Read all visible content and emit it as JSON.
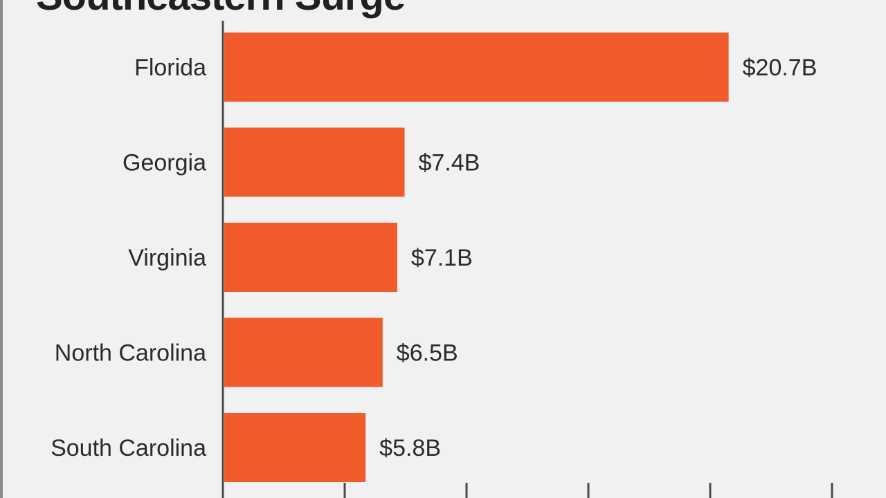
{
  "header": {
    "title": "Southeastern Surge"
  },
  "chart_data": {
    "type": "bar",
    "orientation": "horizontal",
    "title": "Southeastern Surge",
    "categories": [
      "Florida",
      "Georgia",
      "Virginia",
      "North Carolina",
      "South Carolina"
    ],
    "values": [
      20.7,
      7.4,
      7.1,
      6.5,
      5.8
    ],
    "data_labels": [
      "$20.7B",
      "$7.4B",
      "$7.1B",
      "$6.5B",
      "$5.8B"
    ],
    "unit": "$B",
    "xlim": [
      0,
      25
    ],
    "xticks": [
      0,
      5,
      10,
      15,
      20,
      25
    ],
    "grid": false,
    "legend": "none",
    "bar_color": "#f15a2b",
    "background_color": "#f1f1f2"
  }
}
